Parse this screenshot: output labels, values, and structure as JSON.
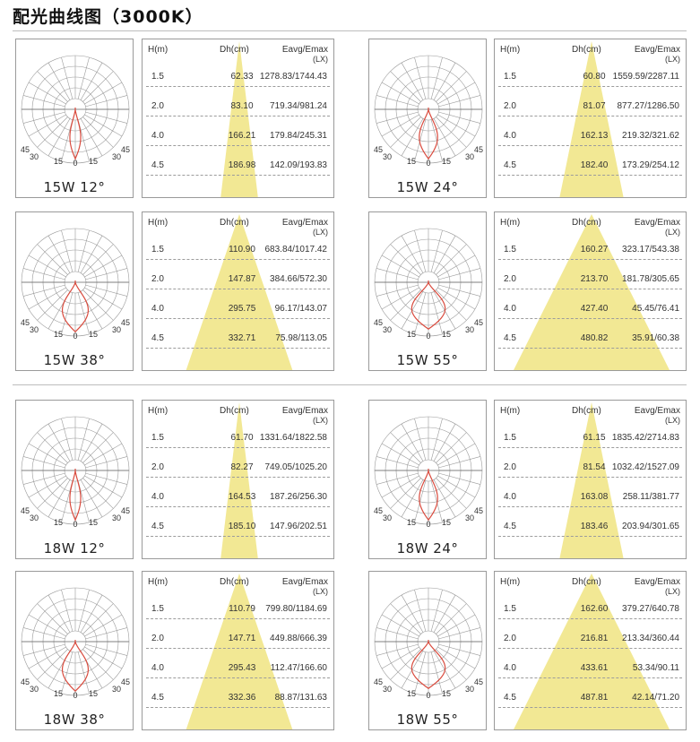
{
  "title": "配光曲线图（3000K）",
  "colors": {
    "curve": "#d94a3d",
    "beam": "#f2e894",
    "grid": "#9a9a9a",
    "border": "#9a9a9a"
  },
  "headers": {
    "h": "H(m)",
    "dh": "Dh(cm)",
    "eavg": "Eavg/Emax",
    "unit": "(LX)"
  },
  "polar_angle_labels": [
    "45",
    "30",
    "15",
    "0",
    "15",
    "30",
    "45"
  ],
  "chart_data": [
    {
      "type": "table",
      "label": "15W 12°",
      "beam_angle_deg": 12,
      "rows": [
        {
          "h": "1.5",
          "dh": "62.33",
          "ev": "1278.83/1744.43"
        },
        {
          "h": "2.0",
          "dh": "83.10",
          "ev": "719.34/981.24"
        },
        {
          "h": "4.0",
          "dh": "166.21",
          "ev": "179.84/245.31"
        },
        {
          "h": "4.5",
          "dh": "186.98",
          "ev": "142.09/193.83"
        }
      ]
    },
    {
      "type": "table",
      "label": "15W 24°",
      "beam_angle_deg": 24,
      "rows": [
        {
          "h": "1.5",
          "dh": "60.80",
          "ev": "1559.59/2287.11"
        },
        {
          "h": "2.0",
          "dh": "81.07",
          "ev": "877.27/1286.50"
        },
        {
          "h": "4.0",
          "dh": "162.13",
          "ev": "219.32/321.62"
        },
        {
          "h": "4.5",
          "dh": "182.40",
          "ev": "173.29/254.12"
        }
      ]
    },
    {
      "type": "table",
      "label": "15W 38°",
      "beam_angle_deg": 38,
      "rows": [
        {
          "h": "1.5",
          "dh": "110.90",
          "ev": "683.84/1017.42"
        },
        {
          "h": "2.0",
          "dh": "147.87",
          "ev": "384.66/572.30"
        },
        {
          "h": "4.0",
          "dh": "295.75",
          "ev": "96.17/143.07"
        },
        {
          "h": "4.5",
          "dh": "332.71",
          "ev": "75.98/113.05"
        }
      ]
    },
    {
      "type": "table",
      "label": "15W 55°",
      "beam_angle_deg": 55,
      "rows": [
        {
          "h": "1.5",
          "dh": "160.27",
          "ev": "323.17/543.38"
        },
        {
          "h": "2.0",
          "dh": "213.70",
          "ev": "181.78/305.65"
        },
        {
          "h": "4.0",
          "dh": "427.40",
          "ev": "45.45/76.41"
        },
        {
          "h": "4.5",
          "dh": "480.82",
          "ev": "35.91/60.38"
        }
      ]
    },
    {
      "type": "table",
      "label": "18W 12°",
      "beam_angle_deg": 12,
      "rows": [
        {
          "h": "1.5",
          "dh": "61.70",
          "ev": "1331.64/1822.58"
        },
        {
          "h": "2.0",
          "dh": "82.27",
          "ev": "749.05/1025.20"
        },
        {
          "h": "4.0",
          "dh": "164.53",
          "ev": "187.26/256.30"
        },
        {
          "h": "4.5",
          "dh": "185.10",
          "ev": "147.96/202.51"
        }
      ]
    },
    {
      "type": "table",
      "label": "18W 24°",
      "beam_angle_deg": 24,
      "rows": [
        {
          "h": "1.5",
          "dh": "61.15",
          "ev": "1835.42/2714.83"
        },
        {
          "h": "2.0",
          "dh": "81.54",
          "ev": "1032.42/1527.09"
        },
        {
          "h": "4.0",
          "dh": "163.08",
          "ev": "258.11/381.77"
        },
        {
          "h": "4.5",
          "dh": "183.46",
          "ev": "203.94/301.65"
        }
      ]
    },
    {
      "type": "table",
      "label": "18W 38°",
      "beam_angle_deg": 38,
      "rows": [
        {
          "h": "1.5",
          "dh": "110.79",
          "ev": "799.80/1184.69"
        },
        {
          "h": "2.0",
          "dh": "147.71",
          "ev": "449.88/666.39"
        },
        {
          "h": "4.0",
          "dh": "295.43",
          "ev": "112.47/166.60"
        },
        {
          "h": "4.5",
          "dh": "332.36",
          "ev": "88.87/131.63"
        }
      ]
    },
    {
      "type": "table",
      "label": "18W 55°",
      "beam_angle_deg": 55,
      "rows": [
        {
          "h": "1.5",
          "dh": "162.60",
          "ev": "379.27/640.78"
        },
        {
          "h": "2.0",
          "dh": "216.81",
          "ev": "213.34/360.44"
        },
        {
          "h": "4.0",
          "dh": "433.61",
          "ev": "53.34/90.11"
        },
        {
          "h": "4.5",
          "dh": "487.81",
          "ev": "42.14/71.20"
        }
      ]
    }
  ]
}
